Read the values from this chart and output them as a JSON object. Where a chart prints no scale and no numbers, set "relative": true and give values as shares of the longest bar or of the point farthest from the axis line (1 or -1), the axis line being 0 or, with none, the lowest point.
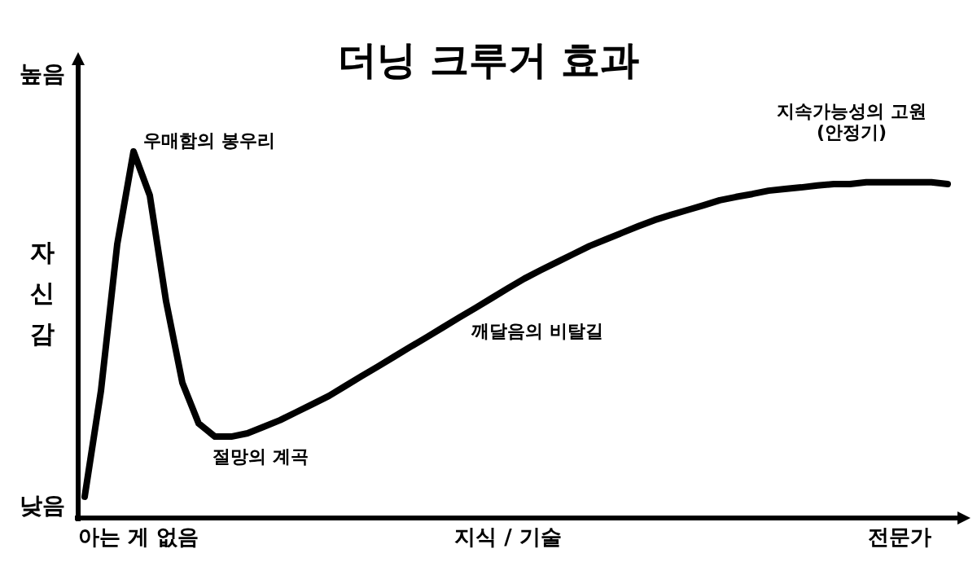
{
  "chart_data": {
    "type": "line",
    "title": "더닝 크루거 효과",
    "xlabel": "지식 / 기술",
    "ylabel": "자신감",
    "relative": true,
    "categories": [
      null,
      null,
      null,
      null,
      null,
      null,
      null,
      null,
      null,
      null,
      null,
      null,
      null,
      null,
      null,
      null,
      null,
      null,
      null,
      null,
      null,
      null,
      null,
      null,
      null,
      null,
      null,
      null,
      null,
      null,
      null,
      null,
      null,
      null,
      null,
      null,
      null,
      null,
      null,
      null,
      null,
      null,
      null,
      null,
      null,
      null,
      null,
      null,
      null,
      null,
      null,
      null,
      null,
      null
    ],
    "series": [
      {
        "color": "#000000",
        "values": [
          0.058,
          0.347,
          0.747,
          1,
          0.88,
          0.591,
          0.369,
          0.258,
          0.222,
          0.222,
          0.231,
          0.249,
          0.267,
          0.289,
          0.311,
          0.333,
          0.36,
          0.387,
          0.413,
          0.44,
          0.467,
          0.493,
          0.52,
          0.547,
          0.573,
          0.6,
          0.627,
          0.653,
          0.676,
          0.698,
          0.72,
          0.742,
          0.76,
          0.778,
          0.796,
          0.813,
          0.827,
          0.84,
          0.853,
          0.867,
          0.876,
          0.884,
          0.893,
          0.898,
          0.902,
          0.907,
          0.911,
          0.911,
          0.916,
          0.916,
          0.916,
          0.916,
          0.916,
          0.911
        ]
      }
    ],
    "annotations": [
      "우매함의 봉우리",
      "절망의 계곡",
      "깨달음의 비탈길",
      "지속가능성의 고원\n(안정기)",
      "높음",
      "낮음",
      "아는 게 없음",
      "전문가"
    ]
  }
}
